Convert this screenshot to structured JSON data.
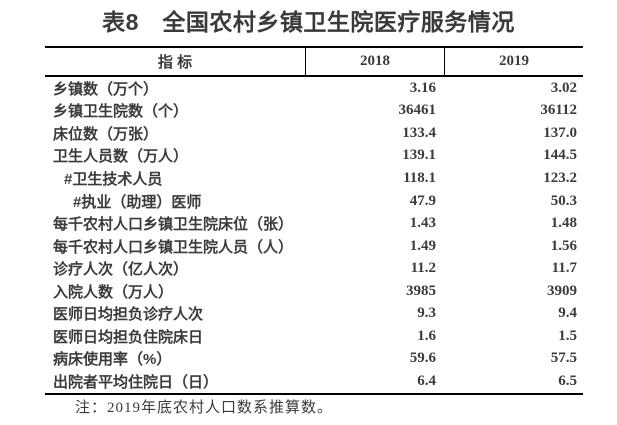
{
  "title": "表8　全国农村乡镇卫生院医疗服务情况",
  "table": {
    "columns": [
      "指 标",
      "2018",
      "2019"
    ],
    "rows": [
      {
        "label": "乡镇数（万个）",
        "indent": 0,
        "y2018": "3.16",
        "y2019": "3.02"
      },
      {
        "label": "乡镇卫生院数（个）",
        "indent": 0,
        "y2018": "36461",
        "y2019": "36112"
      },
      {
        "label": "床位数（万张）",
        "indent": 0,
        "y2018": "133.4",
        "y2019": "137.0"
      },
      {
        "label": "卫生人员数（万人）",
        "indent": 0,
        "y2018": "139.1",
        "y2019": "144.5"
      },
      {
        "label": "#卫生技术人员",
        "indent": 1,
        "y2018": "118.1",
        "y2019": "123.2"
      },
      {
        "label": "#执业（助理）医师",
        "indent": 2,
        "y2018": "47.9",
        "y2019": "50.3"
      },
      {
        "label": "每千农村人口乡镇卫生院床位（张）",
        "indent": 0,
        "y2018": "1.43",
        "y2019": "1.48"
      },
      {
        "label": "每千农村人口乡镇卫生院人员（人）",
        "indent": 0,
        "y2018": "1.49",
        "y2019": "1.56"
      },
      {
        "label": "诊疗人次（亿人次）",
        "indent": 0,
        "y2018": "11.2",
        "y2019": "11.7"
      },
      {
        "label": "入院人数（万人）",
        "indent": 0,
        "y2018": "3985",
        "y2019": "3909"
      },
      {
        "label": "医师日均担负诊疗人次",
        "indent": 0,
        "y2018": "9.3",
        "y2019": "9.4"
      },
      {
        "label": "医师日均担负住院床日",
        "indent": 0,
        "y2018": "1.6",
        "y2019": "1.5"
      },
      {
        "label": "病床使用率（%）",
        "indent": 0,
        "y2018": "59.6",
        "y2019": "57.5"
      },
      {
        "label": "出院者平均住院日（日）",
        "indent": 0,
        "y2018": "6.4",
        "y2019": "6.5"
      }
    ]
  },
  "note": "注：2019年底农村人口数系推算数。",
  "colors": {
    "background": "#ffffff",
    "text": "#3b3b3b",
    "line": "#000000"
  },
  "chart_data": {
    "type": "table",
    "title": "表8　全国农村乡镇卫生院医疗服务情况",
    "columns": [
      "指 标",
      "2018",
      "2019"
    ],
    "categories": [
      "乡镇数（万个）",
      "乡镇卫生院数（个）",
      "床位数（万张）",
      "卫生人员数（万人）",
      "#卫生技术人员",
      "#执业（助理）医师",
      "每千农村人口乡镇卫生院床位（张）",
      "每千农村人口乡镇卫生院人员（人）",
      "诊疗人次（亿人次）",
      "入院人数（万人）",
      "医师日均担负诊疗人次",
      "医师日均担负住院床日",
      "病床使用率（%）",
      "出院者平均住院日（日）"
    ],
    "series": [
      {
        "name": "2018",
        "values": [
          3.16,
          36461,
          133.4,
          139.1,
          118.1,
          47.9,
          1.43,
          1.49,
          11.2,
          3985,
          9.3,
          1.6,
          59.6,
          6.4
        ]
      },
      {
        "name": "2019",
        "values": [
          3.02,
          36112,
          137.0,
          144.5,
          123.2,
          50.3,
          1.48,
          1.56,
          11.7,
          3909,
          9.4,
          1.5,
          57.5,
          6.5
        ]
      }
    ],
    "annotations": [
      "注：2019年底农村人口数系推算数。"
    ]
  }
}
